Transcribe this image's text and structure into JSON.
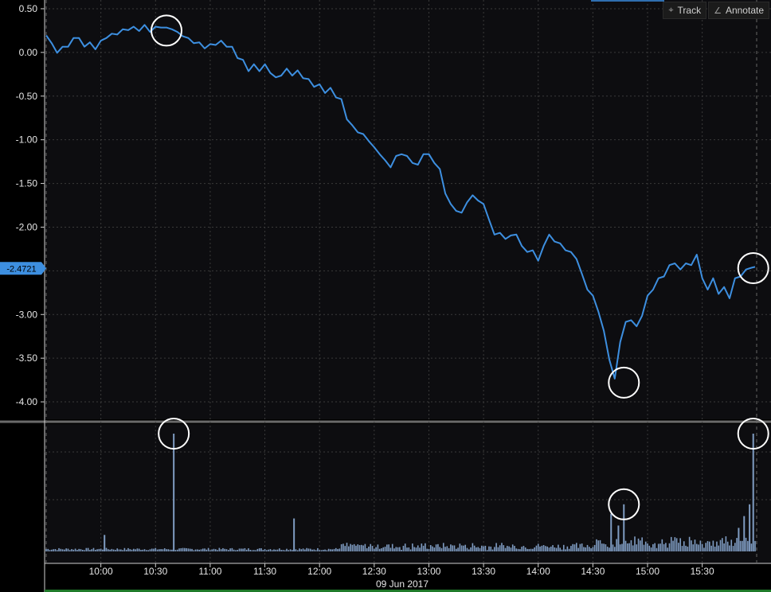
{
  "toolbar": {
    "track_label": "Track",
    "annotate_label": "Annotate"
  },
  "chart_data": [
    {
      "type": "line",
      "ylim": [
        -4.2,
        0.6
      ],
      "yticks": [
        "0.50",
        "0.00",
        "-0.50",
        "-1.00",
        "-1.50",
        "-2.00",
        "-2.50",
        "-3.00",
        "-3.50",
        "-4.00"
      ],
      "ytick_values": [
        0.5,
        0,
        -0.5,
        -1,
        -1.5,
        -2,
        -2.5,
        -3,
        -3.5,
        -4
      ],
      "current_value_label": "-2.4721",
      "current_value": -2.4721,
      "line_color": "#3d8fe0",
      "xlim": [
        "09:30",
        "15:59"
      ],
      "series": [
        {
          "x": [
            "09:30",
            "09:33",
            "09:36",
            "09:39",
            "09:42",
            "09:45",
            "09:48",
            "09:51",
            "09:54",
            "09:57",
            "10:00",
            "10:03",
            "10:06",
            "10:09",
            "10:12",
            "10:15",
            "10:18",
            "10:21",
            "10:24",
            "10:27",
            "10:30",
            "10:33",
            "10:36",
            "10:39",
            "10:42",
            "10:45",
            "10:48",
            "10:51",
            "10:54",
            "10:57",
            "11:00",
            "11:03",
            "11:06",
            "11:09",
            "11:12",
            "11:15",
            "11:18",
            "11:21",
            "11:24",
            "11:27",
            "11:30",
            "11:33",
            "11:36",
            "11:39",
            "11:42",
            "11:45",
            "11:48",
            "11:51",
            "11:54",
            "11:57",
            "12:00",
            "12:03",
            "12:06",
            "12:09",
            "12:12",
            "12:15",
            "12:18",
            "12:21",
            "12:24",
            "12:27",
            "12:30",
            "12:33",
            "12:36",
            "12:39",
            "12:42",
            "12:45",
            "12:48",
            "12:51",
            "12:54",
            "12:57",
            "13:00",
            "13:03",
            "13:06",
            "13:09",
            "13:12",
            "13:15",
            "13:18",
            "13:21",
            "13:24",
            "13:27",
            "13:30",
            "13:33",
            "13:36",
            "13:39",
            "13:42",
            "13:45",
            "13:48",
            "13:51",
            "13:54",
            "13:57",
            "14:00",
            "14:03",
            "14:06",
            "14:09",
            "14:12",
            "14:15",
            "14:18",
            "14:21",
            "14:24",
            "14:27",
            "14:30",
            "14:33",
            "14:36",
            "14:39",
            "14:42",
            "14:45",
            "14:48",
            "14:51",
            "14:54",
            "14:57",
            "15:00",
            "15:03",
            "15:06",
            "15:09",
            "15:12",
            "15:15",
            "15:18",
            "15:21",
            "15:24",
            "15:27",
            "15:30",
            "15:33",
            "15:36",
            "15:39",
            "15:42",
            "15:45",
            "15:48",
            "15:51",
            "15:54",
            "15:57",
            "15:59"
          ],
          "y": [
            0.18,
            0.12,
            -0.02,
            0.08,
            0.05,
            0.18,
            0.15,
            0.08,
            0.1,
            0.05,
            0.12,
            0.18,
            0.2,
            0.22,
            0.25,
            0.27,
            0.28,
            0.26,
            0.3,
            0.25,
            0.28,
            0.3,
            0.27,
            0.28,
            0.22,
            0.2,
            0.15,
            0.12,
            0.1,
            0.06,
            0.08,
            0.1,
            0.12,
            0.08,
            0.05,
            -0.05,
            -0.1,
            -0.2,
            -0.15,
            -0.2,
            -0.15,
            -0.22,
            -0.3,
            -0.25,
            -0.2,
            -0.25,
            -0.22,
            -0.28,
            -0.32,
            -0.38,
            -0.38,
            -0.45,
            -0.42,
            -0.5,
            -0.55,
            -0.75,
            -0.85,
            -0.9,
            -0.95,
            -1.0,
            -1.1,
            -1.15,
            -1.25,
            -1.3,
            -1.2,
            -1.15,
            -1.2,
            -1.25,
            -1.3,
            -1.15,
            -1.18,
            -1.25,
            -1.35,
            -1.6,
            -1.75,
            -1.8,
            -1.85,
            -1.7,
            -1.65,
            -1.68,
            -1.75,
            -1.9,
            -2.1,
            -2.05,
            -2.15,
            -2.08,
            -2.1,
            -2.2,
            -2.3,
            -2.25,
            -2.4,
            -2.2,
            -2.1,
            -2.15,
            -2.2,
            -2.25,
            -2.3,
            -2.35,
            -2.55,
            -2.7,
            -2.8,
            -2.95,
            -3.2,
            -3.5,
            -3.75,
            -3.3,
            -3.1,
            -3.05,
            -3.15,
            -3.0,
            -2.8,
            -2.7,
            -2.6,
            -2.55,
            -2.45,
            -2.4,
            -2.5,
            -2.4,
            -2.45,
            -2.3,
            -2.6,
            -2.7,
            -2.6,
            -2.75,
            -2.7,
            -2.8,
            -2.6,
            -2.55,
            -2.5,
            -2.45,
            -2.47
          ]
        }
      ]
    },
    {
      "type": "bar",
      "bar_color": "#7f9cc2",
      "xticks": [
        "10:00",
        "10:30",
        "11:00",
        "11:30",
        "12:00",
        "12:30",
        "13:00",
        "13:30",
        "14:00",
        "14:30",
        "15:00",
        "15:30"
      ],
      "date_label": "09 Jun 2017",
      "spikes": [
        {
          "time": "10:40",
          "value": 1.0
        },
        {
          "time": "11:46",
          "value": 0.28
        },
        {
          "time": "10:02",
          "value": 0.14
        },
        {
          "time": "14:47",
          "value": 0.4
        },
        {
          "time": "14:40",
          "value": 0.32
        },
        {
          "time": "14:44",
          "value": 0.22
        },
        {
          "time": "15:58",
          "value": 1.0
        },
        {
          "time": "15:56",
          "value": 0.4
        },
        {
          "time": "15:53",
          "value": 0.3
        },
        {
          "time": "15:50",
          "value": 0.2
        }
      ],
      "baseline_activity": "low"
    }
  ],
  "annotations": [
    {
      "pane": "price",
      "time": "10:36",
      "value": 0.25
    },
    {
      "pane": "price",
      "time": "14:47",
      "value": -3.78
    },
    {
      "pane": "price",
      "time": "15:58",
      "value": -2.47
    },
    {
      "pane": "volume",
      "time": "10:40",
      "value": 1.0
    },
    {
      "pane": "volume",
      "time": "14:47",
      "value": 0.4
    },
    {
      "pane": "volume",
      "time": "15:58",
      "value": 1.0
    }
  ]
}
